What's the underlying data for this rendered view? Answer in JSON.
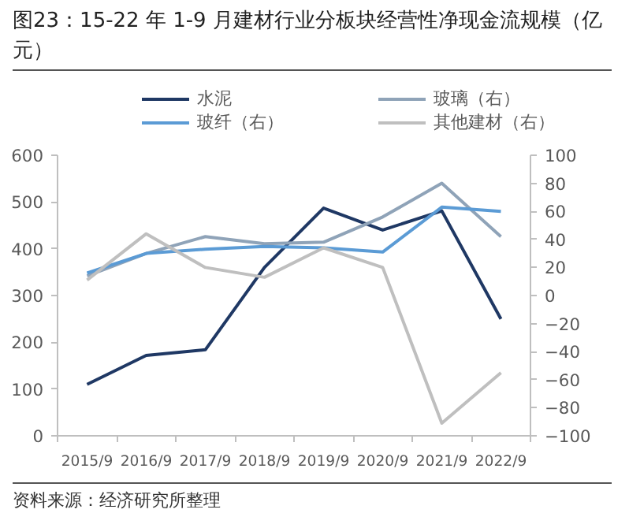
{
  "chart_data": {
    "type": "line",
    "title": "图23：15-22 年 1-9 月建材行业分板块经营性净现金流规模（亿元）",
    "categories": [
      "2015/9",
      "2016/9",
      "2017/9",
      "2018/9",
      "2019/9",
      "2020/9",
      "2021/9",
      "2022/9"
    ],
    "series": [
      {
        "name": "水泥",
        "color": "#1f3864",
        "values": [
          110,
          172,
          184,
          360,
          487,
          440,
          481,
          250
        ]
      },
      {
        "name": "玻璃（右）",
        "color": "#8fa3b8",
        "axis": "y2",
        "values": [
          14,
          30,
          42,
          37,
          38,
          56,
          80,
          42
        ]
      },
      {
        "name": "玻纤（右）",
        "color": "#5b9bd5",
        "axis": "y2",
        "values": [
          16,
          30,
          33,
          35,
          34,
          31,
          63,
          60
        ]
      },
      {
        "name": "其他建材（右）",
        "color": "#bfbfbf",
        "axis": "y2",
        "values": [
          11,
          44,
          20,
          13,
          34,
          20,
          -91,
          -55
        ]
      }
    ],
    "ylim": [
      0,
      600
    ],
    "yticks": [
      0,
      100,
      200,
      300,
      400,
      500,
      600
    ],
    "y2lim": [
      -100,
      100
    ],
    "y2ticks": [
      -100,
      -80,
      -60,
      -40,
      -20,
      0,
      20,
      40,
      60,
      80,
      100
    ],
    "grid": false,
    "legend": "top",
    "annotations": [
      "资料来源：经济研究所整理"
    ]
  }
}
